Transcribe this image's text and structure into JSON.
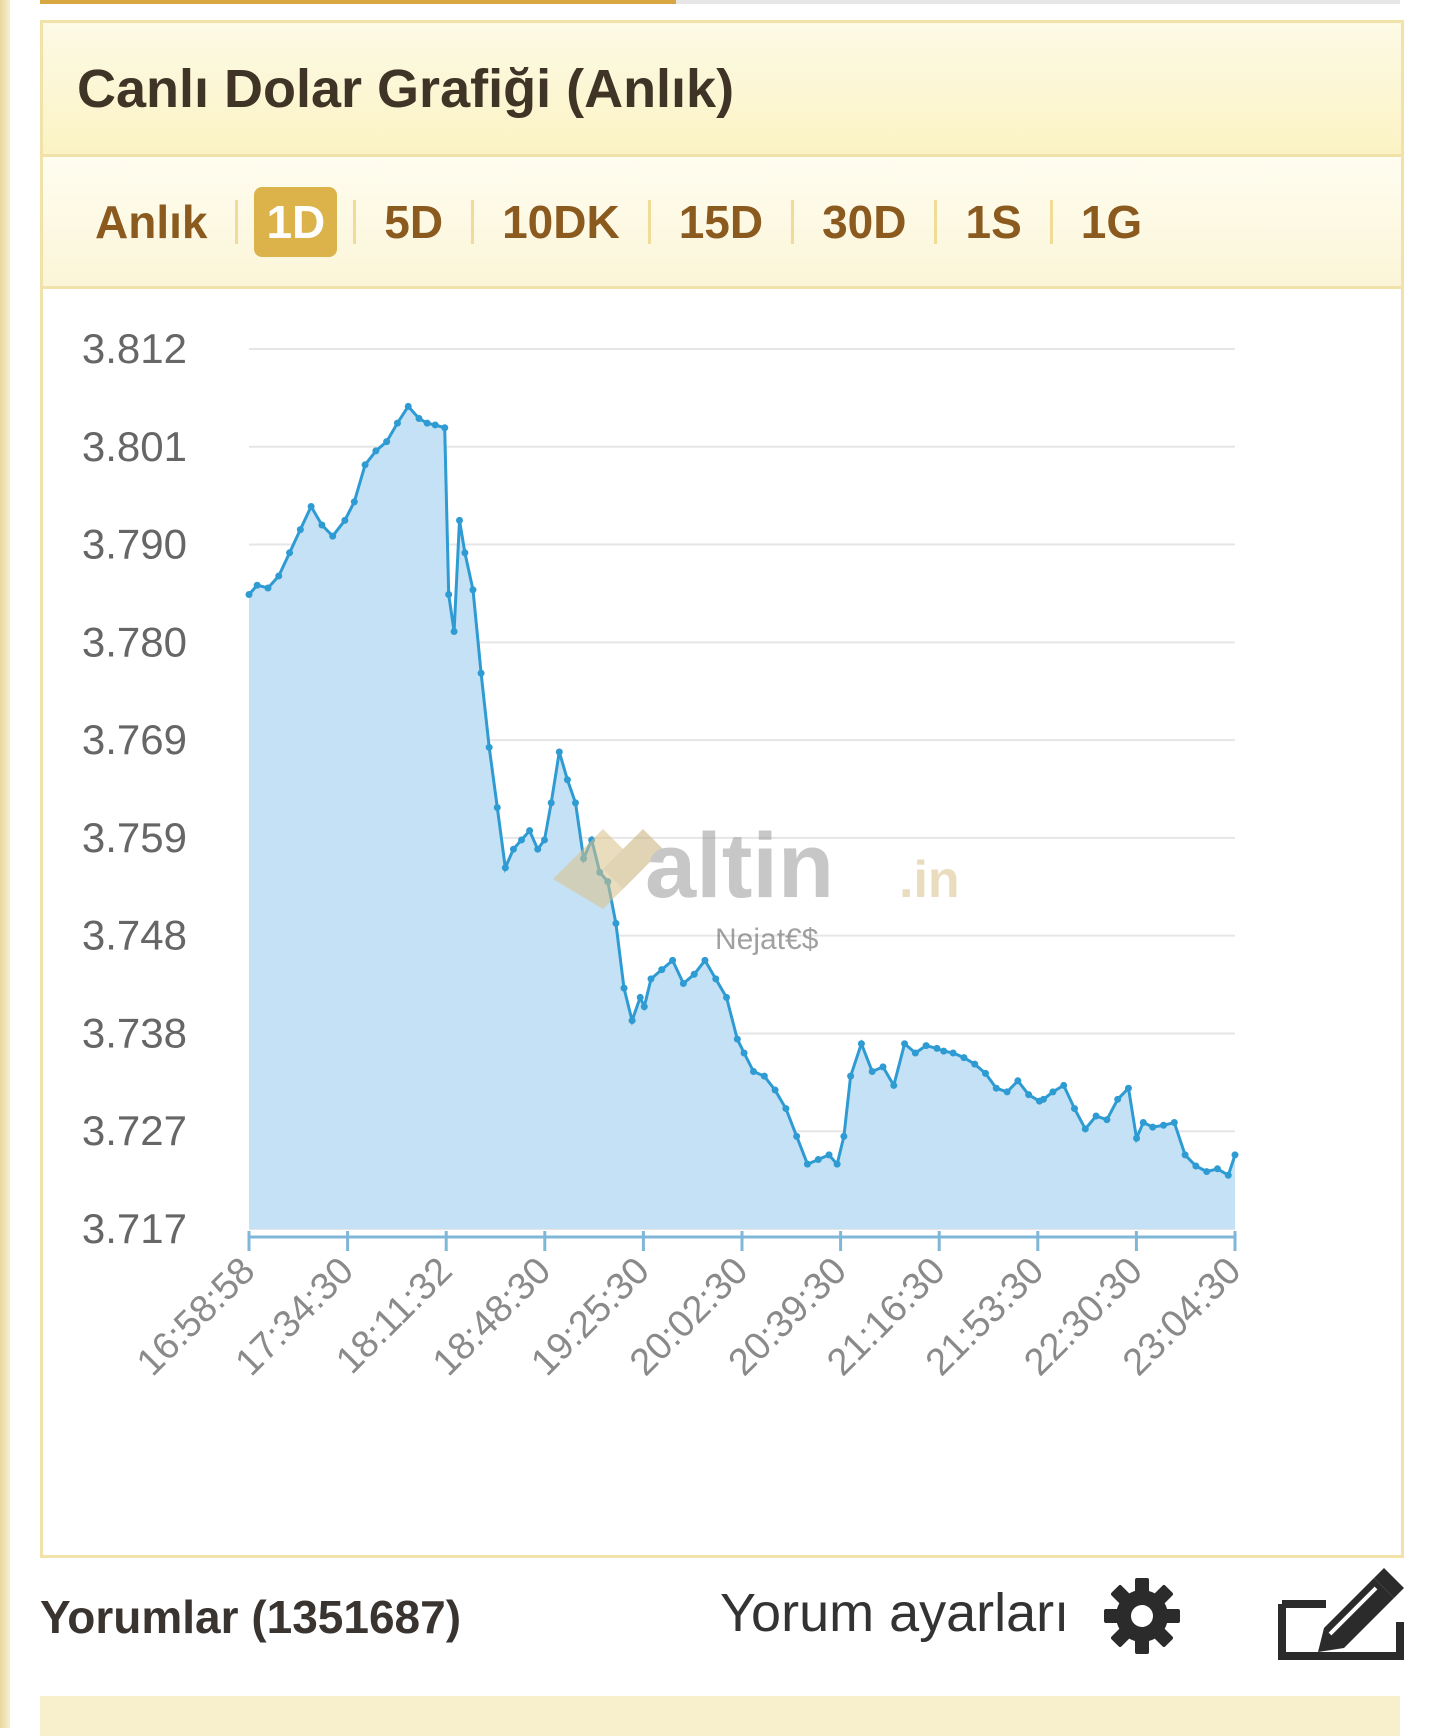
{
  "panel": {
    "title": "Canlı Dolar Grafiği (Anlık)"
  },
  "range_tabs": [
    {
      "label": "Anlık",
      "active": false
    },
    {
      "label": "1D",
      "active": true
    },
    {
      "label": "5D",
      "active": false
    },
    {
      "label": "10DK",
      "active": false
    },
    {
      "label": "15D",
      "active": false
    },
    {
      "label": "30D",
      "active": false
    },
    {
      "label": "1S",
      "active": false
    },
    {
      "label": "1G",
      "active": false
    }
  ],
  "watermark": {
    "brand": "altin",
    "tld": ".in",
    "author": "Nejat€$"
  },
  "comments": {
    "label": "Yorumlar (1351687)",
    "settings_label": "Yorum ayarları"
  },
  "colors": {
    "line": "#2f9bd3",
    "fill": "#c5e1f5",
    "accent": "#dcb24b",
    "tab_text": "#8a5a1f"
  },
  "chart_data": {
    "type": "area",
    "title": "",
    "xlabel": "",
    "ylabel": "",
    "ylim": [
      3.717,
      3.812
    ],
    "yticks": [
      "3.812",
      "3.801",
      "3.790",
      "3.780",
      "3.769",
      "3.759",
      "3.748",
      "3.738",
      "3.727",
      "3.717"
    ],
    "xticks": [
      "16:58:58",
      "17:34:30",
      "18:11:32",
      "18:48:30",
      "19:25:30",
      "20:02:30",
      "20:39:30",
      "21:16:30",
      "21:53:30",
      "22:30:30",
      "23:04:30"
    ],
    "grid": true,
    "series": [
      {
        "x": [
          "16:58:58",
          "17:02:00",
          "17:06:00",
          "17:10:00",
          "17:14:00",
          "17:18:00",
          "17:22:00",
          "17:26:00",
          "17:30:00",
          "17:34:30",
          "17:38:00",
          "17:42:00",
          "17:46:00",
          "17:50:00",
          "17:54:00",
          "17:58:00",
          "18:02:00",
          "18:05:00",
          "18:08:00",
          "18:11:32",
          "18:13:00",
          "18:15:00",
          "18:17:00",
          "18:19:00",
          "18:22:00",
          "18:25:00",
          "18:28:00",
          "18:31:00",
          "18:34:00",
          "18:37:00",
          "18:40:00",
          "18:43:00",
          "18:46:00",
          "18:48:30",
          "18:51:00",
          "18:54:00",
          "18:57:00",
          "19:00:00",
          "19:03:00",
          "19:06:00",
          "19:09:00",
          "19:12:00",
          "19:15:00",
          "19:18:00",
          "19:21:00",
          "19:24:00",
          "19:25:30",
          "19:28:00",
          "19:32:00",
          "19:36:00",
          "19:40:00",
          "19:44:00",
          "19:48:00",
          "19:52:00",
          "19:56:00",
          "20:00:00",
          "20:02:30",
          "20:06:00",
          "20:10:00",
          "20:14:00",
          "20:18:00",
          "20:22:00",
          "20:26:00",
          "20:30:00",
          "20:34:00",
          "20:37:00",
          "20:39:30",
          "20:42:00",
          "20:46:00",
          "20:50:00",
          "20:54:00",
          "20:58:00",
          "21:02:00",
          "21:06:00",
          "21:10:00",
          "21:14:00",
          "21:16:30",
          "21:20:00",
          "21:24:00",
          "21:28:00",
          "21:32:00",
          "21:36:00",
          "21:40:00",
          "21:44:00",
          "21:48:00",
          "21:52:00",
          "21:53:30",
          "21:57:00",
          "22:01:00",
          "22:05:00",
          "22:09:00",
          "22:13:00",
          "22:17:00",
          "22:21:00",
          "22:25:00",
          "22:28:00",
          "22:30:30",
          "22:34:00",
          "22:38:00",
          "22:42:00",
          "22:46:00",
          "22:50:00",
          "22:54:00",
          "22:58:00",
          "23:02:00",
          "23:04:30"
        ],
        "values": [
          3.7855,
          3.7865,
          3.7862,
          3.7875,
          3.79,
          3.7925,
          3.795,
          3.793,
          3.7918,
          3.7935,
          3.7955,
          3.7995,
          3.801,
          3.802,
          3.804,
          3.8058,
          3.8045,
          3.804,
          3.8038,
          3.8035,
          3.7855,
          3.7815,
          3.7935,
          3.79,
          3.786,
          3.777,
          3.769,
          3.7625,
          3.756,
          3.758,
          3.759,
          3.76,
          3.758,
          3.759,
          3.763,
          3.7685,
          3.7655,
          3.763,
          3.757,
          3.759,
          3.7555,
          3.7545,
          3.75,
          3.743,
          3.7395,
          3.742,
          3.741,
          3.744,
          3.745,
          3.746,
          3.7435,
          3.7445,
          3.746,
          3.744,
          3.742,
          3.7375,
          3.736,
          3.734,
          3.7335,
          3.732,
          3.73,
          3.727,
          3.724,
          3.7245,
          3.725,
          3.724,
          3.727,
          3.7335,
          3.737,
          3.734,
          3.7345,
          3.7325,
          3.737,
          3.736,
          3.7368,
          3.7365,
          3.7362,
          3.736,
          3.7355,
          3.7348,
          3.7338,
          3.7322,
          3.7318,
          3.733,
          3.7315,
          3.7308,
          3.731,
          3.7318,
          3.7325,
          3.73,
          3.7278,
          3.7292,
          3.7288,
          3.731,
          3.7322,
          3.7268,
          3.7285,
          3.728,
          3.7282,
          3.7285,
          3.725,
          3.7238,
          3.7232,
          3.7235,
          3.7228,
          3.725
        ]
      }
    ]
  }
}
